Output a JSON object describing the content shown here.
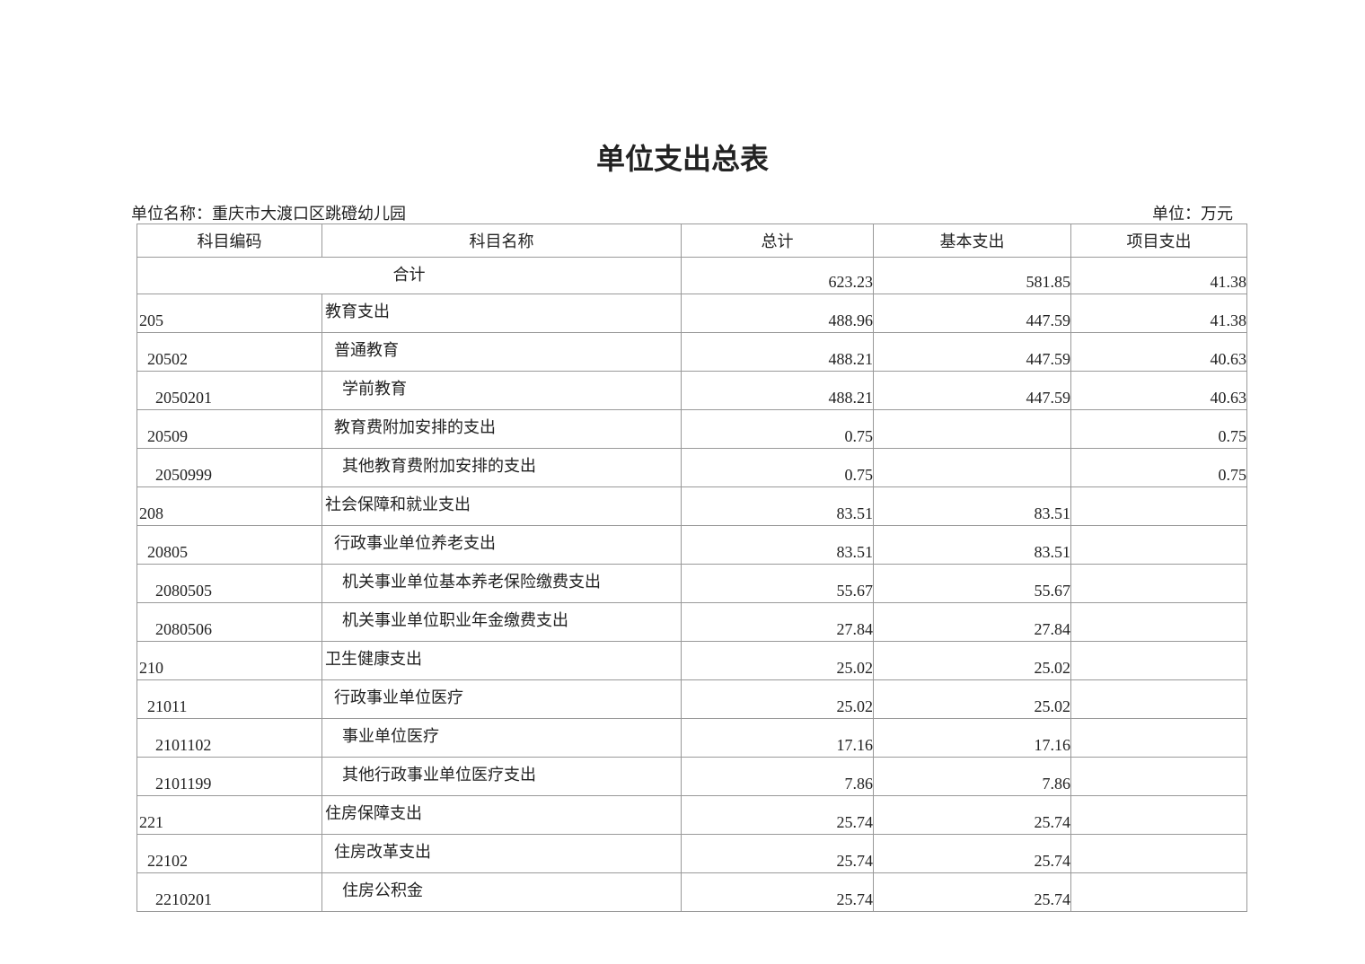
{
  "title": "单位支出总表",
  "unit_name": "单位名称：重庆市大渡口区跳磴幼儿园",
  "unit": "单位：万元",
  "headers": [
    "科目编码",
    "科目名称",
    "总计",
    "基本支出",
    "项目支出"
  ],
  "total": {
    "label": "合计",
    "total": "623.23",
    "basic": "581.85",
    "project": "41.38"
  },
  "rows": [
    {
      "code": "205",
      "name": "教育支出",
      "level": 0,
      "total": "488.96",
      "basic": "447.59",
      "project": "41.38"
    },
    {
      "code": "20502",
      "name": "普通教育",
      "level": 1,
      "total": "488.21",
      "basic": "447.59",
      "project": "40.63"
    },
    {
      "code": "2050201",
      "name": "学前教育",
      "level": 2,
      "total": "488.21",
      "basic": "447.59",
      "project": "40.63"
    },
    {
      "code": "20509",
      "name": "教育费附加安排的支出",
      "level": 1,
      "total": "0.75",
      "basic": "",
      "project": "0.75"
    },
    {
      "code": "2050999",
      "name": "其他教育费附加安排的支出",
      "level": 2,
      "total": "0.75",
      "basic": "",
      "project": "0.75"
    },
    {
      "code": "208",
      "name": "社会保障和就业支出",
      "level": 0,
      "total": "83.51",
      "basic": "83.51",
      "project": ""
    },
    {
      "code": "20805",
      "name": "行政事业单位养老支出",
      "level": 1,
      "total": "83.51",
      "basic": "83.51",
      "project": ""
    },
    {
      "code": "2080505",
      "name": "机关事业单位基本养老保险缴费支出",
      "level": 2,
      "total": "55.67",
      "basic": "55.67",
      "project": ""
    },
    {
      "code": "2080506",
      "name": "机关事业单位职业年金缴费支出",
      "level": 2,
      "total": "27.84",
      "basic": "27.84",
      "project": ""
    },
    {
      "code": "210",
      "name": "卫生健康支出",
      "level": 0,
      "total": "25.02",
      "basic": "25.02",
      "project": ""
    },
    {
      "code": "21011",
      "name": "行政事业单位医疗",
      "level": 1,
      "total": "25.02",
      "basic": "25.02",
      "project": ""
    },
    {
      "code": "2101102",
      "name": "事业单位医疗",
      "level": 2,
      "total": "17.16",
      "basic": "17.16",
      "project": ""
    },
    {
      "code": "2101199",
      "name": "其他行政事业单位医疗支出",
      "level": 2,
      "total": "7.86",
      "basic": "7.86",
      "project": ""
    },
    {
      "code": "221",
      "name": "住房保障支出",
      "level": 0,
      "total": "25.74",
      "basic": "25.74",
      "project": ""
    },
    {
      "code": "22102",
      "name": "住房改革支出",
      "level": 1,
      "total": "25.74",
      "basic": "25.74",
      "project": ""
    },
    {
      "code": "2210201",
      "name": "住房公积金",
      "level": 2,
      "total": "25.74",
      "basic": "25.74",
      "project": ""
    }
  ]
}
